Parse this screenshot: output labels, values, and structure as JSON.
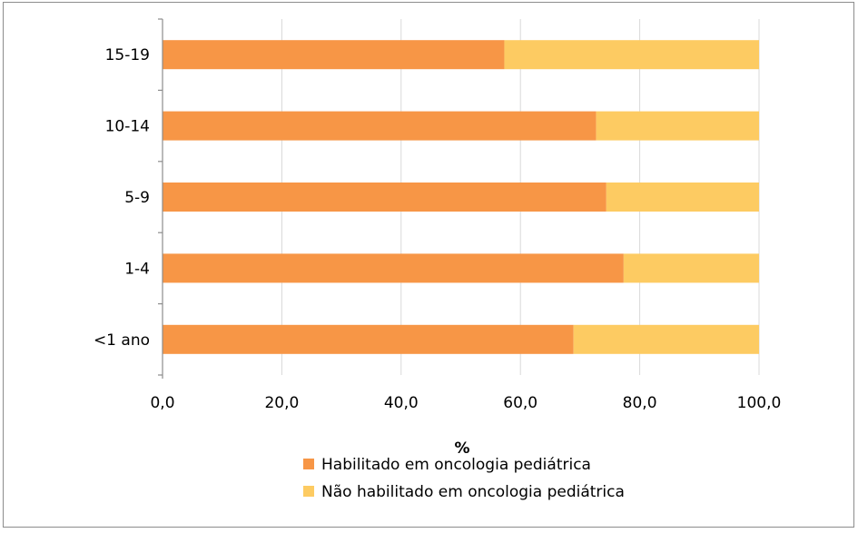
{
  "chart_data": {
    "type": "bar",
    "orientation": "horizontal",
    "stacked": true,
    "categories": [
      "15-19",
      "10-14",
      "5-9",
      "1-4",
      "<1 ano"
    ],
    "series": [
      {
        "name": "Habilitado em oncologia pediátrica",
        "color": "#F79646",
        "values": [
          57.3,
          72.7,
          74.4,
          77.3,
          68.9
        ]
      },
      {
        "name": "Não habilitado em oncologia pediátrica",
        "color": "#FDCB62",
        "values": [
          42.7,
          27.3,
          25.6,
          22.7,
          31.1
        ]
      }
    ],
    "xlim": [
      0,
      100
    ],
    "xticks": [
      "0,0",
      "20,0",
      "40,0",
      "60,0",
      "80,0",
      "100,0"
    ],
    "xlabel": "%",
    "ylabel": "",
    "title": "",
    "grid": "vertical",
    "legend": "bottom"
  }
}
